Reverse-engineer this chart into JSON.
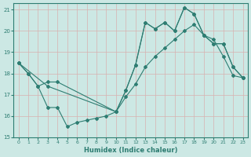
{
  "xlabel": "Humidex (Indice chaleur)",
  "xlim": [
    -0.5,
    23.5
  ],
  "ylim": [
    15,
    21.3
  ],
  "yticks": [
    15,
    16,
    17,
    18,
    19,
    20,
    21
  ],
  "xticks": [
    0,
    1,
    2,
    3,
    4,
    5,
    6,
    7,
    8,
    9,
    10,
    11,
    12,
    13,
    14,
    15,
    16,
    17,
    18,
    19,
    20,
    21,
    22,
    23
  ],
  "bg_color": "#cce8e4",
  "grid_color": "#b8d8d4",
  "line_color": "#2e7d72",
  "line1_x": [
    0,
    1,
    2,
    3,
    4,
    10,
    11,
    12,
    13,
    14,
    15,
    16,
    17,
    18,
    19,
    20,
    21,
    22,
    23
  ],
  "line1_y": [
    18.5,
    18.0,
    17.4,
    17.6,
    17.6,
    16.2,
    17.2,
    18.4,
    20.4,
    20.1,
    20.4,
    20.0,
    21.1,
    20.8,
    19.8,
    19.4,
    19.4,
    18.3,
    17.8
  ],
  "line2_x": [
    0,
    1,
    2,
    3,
    4,
    5,
    6,
    7,
    8,
    9,
    10,
    11,
    12,
    13,
    14,
    15,
    16,
    17,
    18,
    19,
    20,
    21,
    22,
    23
  ],
  "line2_y": [
    18.5,
    18.0,
    17.4,
    16.4,
    16.4,
    15.5,
    15.7,
    15.8,
    15.9,
    16.0,
    16.2,
    17.2,
    18.4,
    20.4,
    20.1,
    20.4,
    20.0,
    21.1,
    20.8,
    19.8,
    19.4,
    19.4,
    18.3,
    17.8
  ],
  "line3_x": [
    0,
    3,
    10,
    11,
    12,
    13,
    14,
    15,
    16,
    17,
    18,
    19,
    20,
    21,
    22,
    23
  ],
  "line3_y": [
    18.5,
    17.4,
    16.2,
    16.9,
    17.5,
    18.3,
    18.8,
    19.2,
    19.6,
    20.0,
    20.3,
    19.8,
    19.6,
    18.8,
    17.9,
    17.8
  ]
}
